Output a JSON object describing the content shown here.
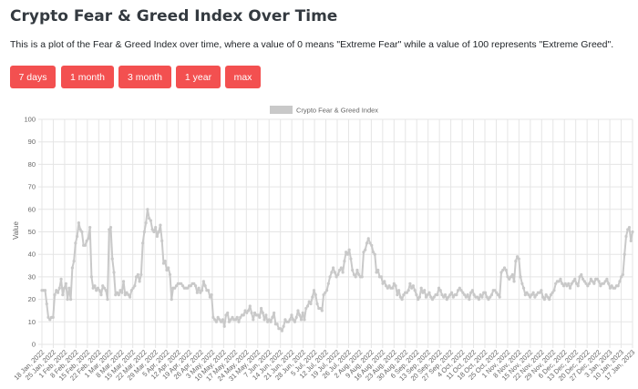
{
  "header": {
    "title": "Crypto Fear & Greed Index Over Time",
    "description": "This is a plot of the Fear & Greed Index over time, where a value of 0 means \"Extreme Fear\" while a value of 100 represents \"Extreme Greed\"."
  },
  "range_buttons": [
    "7 days",
    "1 month",
    "3 month",
    "1 year",
    "max"
  ],
  "colors": {
    "button": "#f35050",
    "series": "#c9c9c9",
    "grid": "#e5e5e5",
    "axis_text": "#666666"
  },
  "chart_data": {
    "type": "line",
    "title": "",
    "legend": {
      "label": "Crypto Fear & Greed Index",
      "position": "top"
    },
    "ylabel": "Value",
    "xlabel": "",
    "ylim": [
      0,
      100
    ],
    "y_ticks": [
      0,
      10,
      20,
      30,
      40,
      50,
      60,
      70,
      80,
      90,
      100
    ],
    "grid": true,
    "x_labels": [
      "18 Jan, 2022",
      "25 Jan, 2022",
      "1 Feb, 2022",
      "8 Feb, 2022",
      "15 Feb, 2022",
      "22 Feb, 2022",
      "1 Mar, 2022",
      "8 Mar, 2022",
      "15 Mar, 2022",
      "22 Mar, 2022",
      "29 Mar, 2022",
      "5 Apr, 2022",
      "12 Apr, 2022",
      "19 Apr, 2022",
      "26 Apr, 2022",
      "3 May, 2022",
      "10 May, 2022",
      "17 May, 2022",
      "24 May, 2022",
      "31 May, 2022",
      "7 Jun, 2022",
      "14 Jun, 2022",
      "21 Jun, 2022",
      "28 Jun, 2022",
      "5 Jul, 2022",
      "12 Jul, 2022",
      "19 Jul, 2022",
      "26 Jul, 2022",
      "2 Aug, 2022",
      "9 Aug, 2022",
      "16 Aug, 2022",
      "23 Aug, 2022",
      "30 Aug, 2022",
      "6 Sep, 2022",
      "13 Sep, 2022",
      "20 Sep, 2022",
      "27 Sep, 2022",
      "4 Oct, 2022",
      "11 Oct, 2022",
      "18 Oct, 2022",
      "25 Oct, 2022",
      "1 Nov, 2022",
      "8 Nov, 2022",
      "15 Nov, 2022",
      "22 Nov, 2022",
      "29 Nov, 2022",
      "6 Dec, 2022",
      "13 Dec, 2022",
      "20 Dec, 2022",
      "27 Dec, 2022",
      "3 Jan, 2023",
      "10 Jan, 2023",
      "17 Jan, 2023"
    ],
    "series": [
      {
        "name": "Crypto Fear & Greed Index",
        "values": [
          24,
          24,
          24,
          18,
          12,
          11,
          12,
          12,
          22,
          24,
          23,
          25,
          29,
          22,
          25,
          27,
          20,
          25,
          20,
          34,
          37,
          45,
          48,
          54,
          51,
          50,
          44,
          44,
          46,
          47,
          52,
          30,
          25,
          26,
          24,
          25,
          24,
          22,
          26,
          25,
          24,
          20,
          51,
          52,
          38,
          32,
          22,
          23,
          22,
          24,
          23,
          28,
          22,
          23,
          22,
          21,
          24,
          25,
          26,
          30,
          31,
          28,
          31,
          45,
          50,
          54,
          60,
          56,
          55,
          51,
          50,
          52,
          48,
          50,
          53,
          46,
          36,
          37,
          33,
          34,
          31,
          20,
          25,
          25,
          26,
          27,
          27,
          27,
          26,
          25,
          25,
          25,
          26,
          26,
          27,
          27,
          26,
          23,
          25,
          23,
          24,
          28,
          26,
          24,
          24,
          21,
          22,
          12,
          11,
          10,
          12,
          11,
          10,
          11,
          8,
          13,
          14,
          10,
          11,
          12,
          11,
          11,
          12,
          10,
          12,
          13,
          13,
          15,
          14,
          15,
          17,
          14,
          11,
          14,
          13,
          13,
          12,
          16,
          14,
          11,
          13,
          10,
          11,
          10,
          12,
          14,
          9,
          9,
          7,
          7,
          6,
          8,
          11,
          10,
          10,
          11,
          13,
          11,
          10,
          12,
          15,
          13,
          11,
          14,
          11,
          16,
          17,
          19,
          18,
          21,
          24,
          22,
          18,
          16,
          16,
          15,
          22,
          23,
          24,
          27,
          30,
          32,
          34,
          32,
          30,
          31,
          33,
          34,
          32,
          37,
          41,
          40,
          42,
          38,
          33,
          31,
          30,
          33,
          31,
          30,
          30,
          41,
          42,
          45,
          47,
          45,
          44,
          41,
          40,
          32,
          33,
          30,
          30,
          27,
          28,
          26,
          25,
          26,
          25,
          25,
          27,
          26,
          22,
          24,
          21,
          20,
          22,
          23,
          23,
          24,
          27,
          25,
          26,
          24,
          22,
          20,
          21,
          25,
          23,
          24,
          21,
          22,
          23,
          21,
          20,
          21,
          22,
          22,
          25,
          24,
          22,
          21,
          22,
          20,
          21,
          22,
          23,
          21,
          22,
          22,
          24,
          25,
          24,
          23,
          22,
          21,
          22,
          20,
          23,
          24,
          22,
          21,
          21,
          20,
          22,
          21,
          23,
          23,
          21,
          20,
          21,
          22,
          24,
          24,
          23,
          22,
          21,
          32,
          33,
          34,
          33,
          30,
          29,
          30,
          31,
          28,
          37,
          39,
          38,
          30,
          27,
          25,
          22,
          23,
          22,
          21,
          22,
          23,
          21,
          22,
          23,
          23,
          24,
          21,
          20,
          22,
          21,
          20,
          22,
          23,
          24,
          27,
          28,
          28,
          29,
          27,
          26,
          27,
          26,
          27,
          25,
          27,
          28,
          29,
          27,
          26,
          30,
          31,
          29,
          28,
          27,
          26,
          27,
          29,
          28,
          27,
          29,
          29,
          28,
          26,
          27,
          27,
          28,
          29,
          27,
          25,
          26,
          25,
          25,
          26,
          26,
          28,
          30,
          31,
          40,
          48,
          51,
          52,
          46,
          50
        ]
      }
    ]
  }
}
